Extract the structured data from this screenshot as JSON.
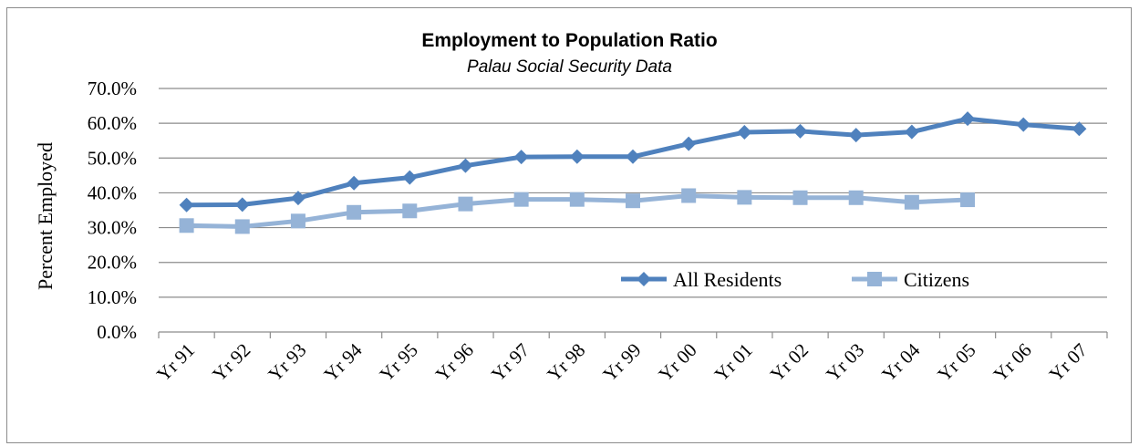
{
  "chart_data": {
    "type": "line",
    "title": "Employment to Population Ratio",
    "subtitle": "Palau Social Security Data",
    "xlabel": "",
    "ylabel": "Percent Employed",
    "categories": [
      "Yr 91",
      "Yr 92",
      "Yr 93",
      "Yr 94",
      "Yr 95",
      "Yr 96",
      "Yr 97",
      "Yr 98",
      "Yr 99",
      "Yr 00",
      "Yr 01",
      "Yr 02",
      "Yr 03",
      "Yr 04",
      "Yr 05",
      "Yr 06",
      "Yr 07"
    ],
    "ylim": [
      0,
      70
    ],
    "yticks": [
      "0.0%",
      "10.0%",
      "20.0%",
      "30.0%",
      "40.0%",
      "50.0%",
      "60.0%",
      "70.0%"
    ],
    "grid": true,
    "legend_position": "bottom-right",
    "series": [
      {
        "name": "All Residents",
        "color": "#4f81bd",
        "marker": "diamond",
        "values": [
          36.5,
          36.6,
          38.5,
          42.8,
          44.4,
          47.8,
          50.3,
          50.4,
          50.4,
          54.1,
          57.4,
          57.7,
          56.6,
          57.5,
          61.3,
          59.6,
          58.4
        ]
      },
      {
        "name": "Citizens",
        "color": "#95b3d7",
        "marker": "square",
        "values": [
          30.6,
          30.3,
          31.9,
          34.4,
          34.8,
          36.8,
          38.1,
          38.1,
          37.7,
          39.2,
          38.7,
          38.6,
          38.6,
          37.3,
          38.0,
          null,
          null
        ]
      }
    ]
  }
}
